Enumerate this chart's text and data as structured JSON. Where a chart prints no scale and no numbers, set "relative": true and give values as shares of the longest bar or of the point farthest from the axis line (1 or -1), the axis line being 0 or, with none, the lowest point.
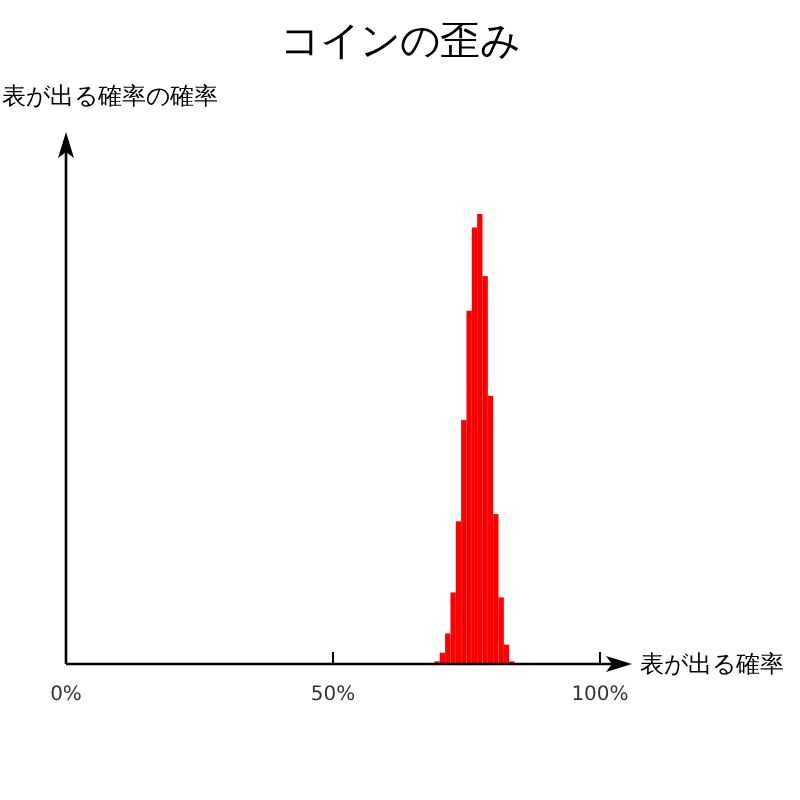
{
  "chart_data": {
    "type": "bar",
    "title": "コインの歪み",
    "xlabel": "表が出る確率",
    "ylabel": "表が出る確率の確率",
    "relative": true,
    "color": "#ff0000",
    "x": [
      69.5,
      70.5,
      71.5,
      72.5,
      73.5,
      74.5,
      75.5,
      76.5,
      77.5,
      78.5,
      79.5,
      80.5,
      81.5,
      82.5,
      83.5
    ],
    "values": [
      0.006,
      0.025,
      0.068,
      0.159,
      0.317,
      0.542,
      0.785,
      0.97,
      1,
      0.862,
      0.596,
      0.333,
      0.148,
      0.043,
      0.006
    ],
    "xlim": [
      0,
      104.5
    ],
    "xticks": [
      {
        "value": 0,
        "label": "0%"
      },
      {
        "value": 50,
        "label": "50%"
      },
      {
        "value": 100,
        "label": "100%"
      }
    ],
    "tick_labels": "x"
  }
}
